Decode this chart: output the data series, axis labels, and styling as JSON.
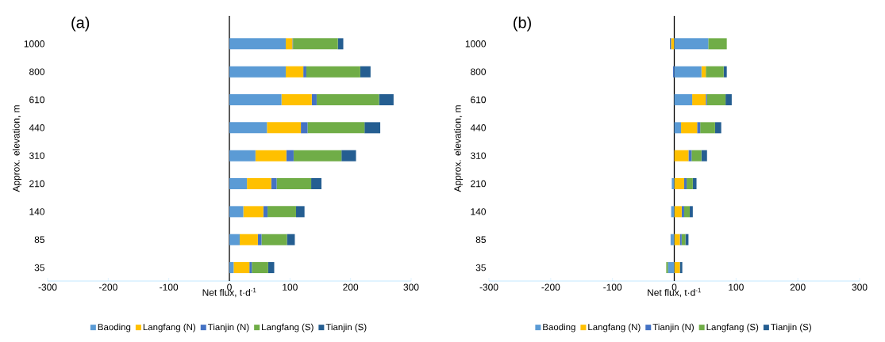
{
  "chart_data": [
    {
      "type": "bar",
      "orientation": "horizontal",
      "stacked": true,
      "title": "(a)",
      "xlabel": "Net flux, t·d$^{-1}$",
      "ylabel": "Approx. elevation, m",
      "categories": [
        "1000",
        "800",
        "610",
        "440",
        "310",
        "210",
        "140",
        "85",
        "35"
      ],
      "series": [
        {
          "name": "Baoding",
          "color": "#5b9bd5",
          "values": [
            93,
            93,
            86,
            62,
            43,
            29,
            23,
            17,
            7
          ]
        },
        {
          "name": "Langfang (N)",
          "color": "#ffc000",
          "values": [
            11,
            29,
            50,
            56,
            51,
            40,
            33,
            30,
            26
          ]
        },
        {
          "name": "Tianjin (N)",
          "color": "#4472c4",
          "values": [
            1,
            5,
            8,
            11,
            12,
            9,
            7,
            6,
            4
          ]
        },
        {
          "name": "Langfang (S)",
          "color": "#70ad47",
          "values": [
            74,
            89,
            103,
            94,
            79,
            57,
            47,
            42,
            27
          ]
        },
        {
          "name": "Tianjin (S)",
          "color": "#255e91",
          "values": [
            9,
            17,
            24,
            26,
            24,
            17,
            14,
            13,
            10
          ]
        }
      ],
      "xlim": [
        -300,
        300
      ],
      "xticks": [
        -300,
        -200,
        -100,
        0,
        100,
        200,
        300
      ],
      "legend": "bottom"
    },
    {
      "type": "bar",
      "orientation": "horizontal",
      "stacked": true,
      "title": "(b)",
      "xlabel": "Net flux, t·d$^{-1}$",
      "ylabel": "Approx. elevation, m",
      "categories": [
        "1000",
        "800",
        "610",
        "440",
        "310",
        "210",
        "140",
        "85",
        "35"
      ],
      "series": [
        {
          "name": "Baoding",
          "color": "#5b9bd5",
          "values": [
            55,
            44,
            29,
            11,
            null,
            -4,
            -5,
            -6,
            -10
          ]
        },
        {
          "name": "Langfang (N)",
          "color": "#ffc000",
          "values": [
            -5,
            7,
            22,
            26,
            23,
            16,
            12,
            9,
            9
          ]
        },
        {
          "name": "Tianjin (N)",
          "color": "#4472c4",
          "values": [
            -2,
            -2,
            2,
            5,
            5,
            4,
            4,
            3,
            null
          ]
        },
        {
          "name": "Langfang (S)",
          "color": "#70ad47",
          "values": [
            30,
            29,
            30,
            24,
            16,
            10,
            9,
            6,
            -3
          ]
        },
        {
          "name": "Tianjin (S)",
          "color": "#255e91",
          "values": [
            null,
            5,
            10,
            10,
            9,
            6,
            5,
            5,
            4
          ]
        }
      ],
      "xlim": [
        -300,
        300
      ],
      "xticks": [
        -300,
        -200,
        -100,
        0,
        100,
        200,
        300
      ],
      "legend": "bottom"
    }
  ]
}
